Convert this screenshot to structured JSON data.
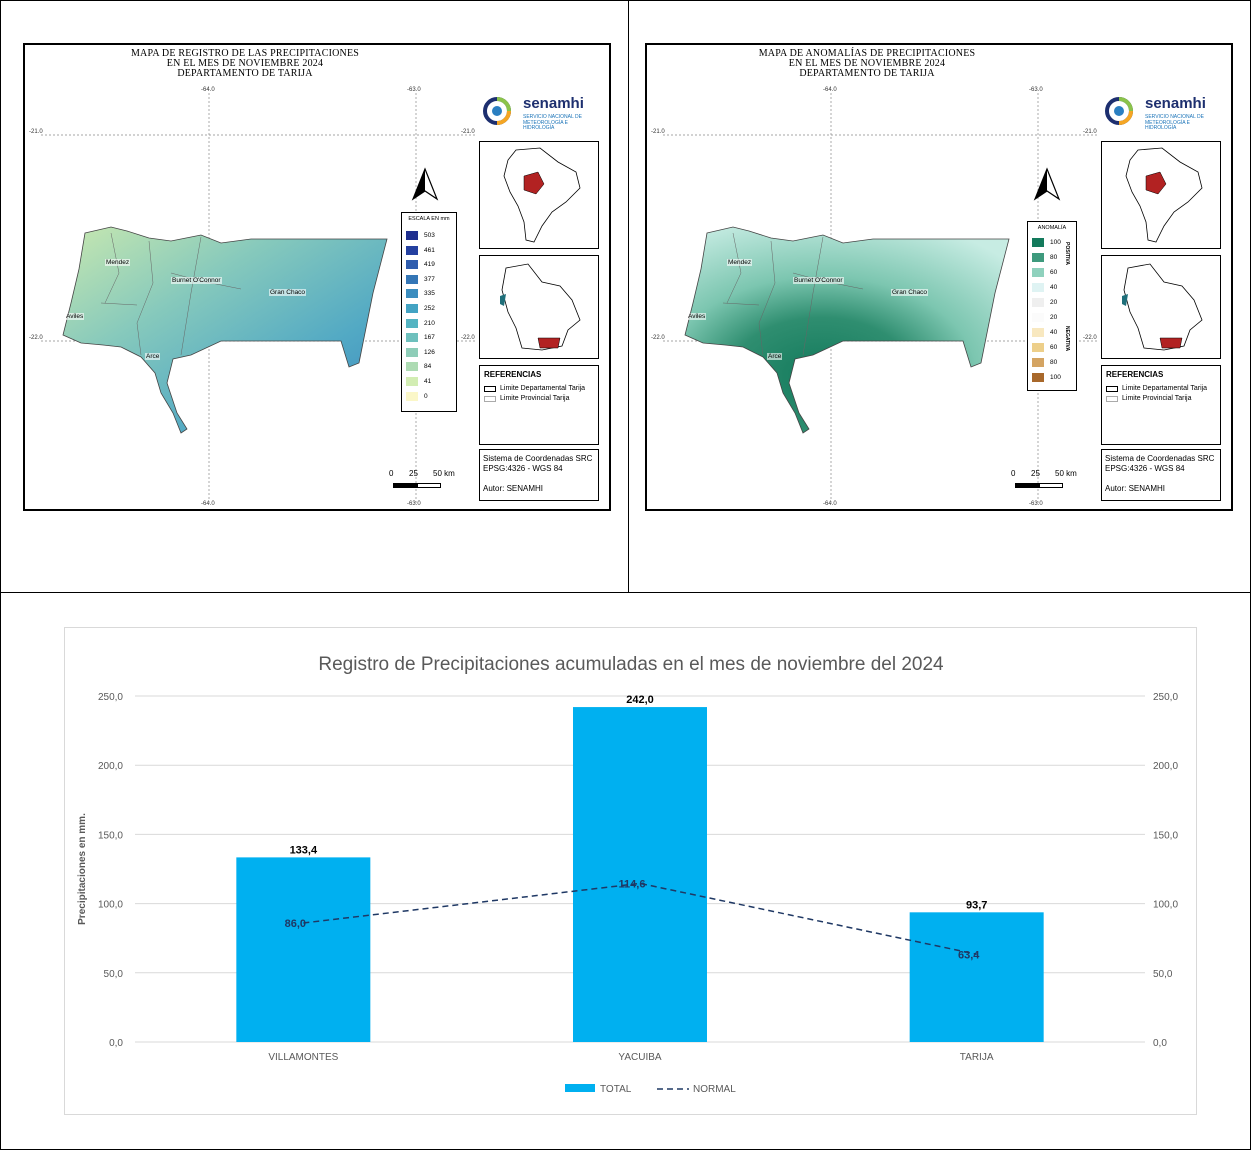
{
  "map_precip": {
    "title_lines": [
      "MAPA DE REGISTRO DE LAS PRECIPITACIONES",
      "EN EL MES DE NOVIEMBRE  2024",
      "DEPARTAMENTO DE TARIJA"
    ],
    "grid_top": [
      "-64.0",
      "-63.0"
    ],
    "grid_bottom": [
      "-64.0",
      "-63.0"
    ],
    "grid_left": [
      "-21.0",
      "-22.0"
    ],
    "grid_right": [
      "-21.0",
      "-22.0"
    ],
    "places": [
      "Mendez",
      "Burnet O'Connor",
      "Gran Chaco",
      "Aviles",
      "Arce"
    ],
    "legend_title": "ESCALA EN mm",
    "legend": [
      {
        "label": "503",
        "color": "#1f2f8f"
      },
      {
        "label": "461",
        "color": "#2440a0"
      },
      {
        "label": "419",
        "color": "#2f5dae"
      },
      {
        "label": "377",
        "color": "#3476b6"
      },
      {
        "label": "335",
        "color": "#3b8dbf"
      },
      {
        "label": "252",
        "color": "#43a3c3"
      },
      {
        "label": "210",
        "color": "#54b4c2"
      },
      {
        "label": "167",
        "color": "#6ec0bd"
      },
      {
        "label": "126",
        "color": "#8ecdb8"
      },
      {
        "label": "84",
        "color": "#addbb3"
      },
      {
        "label": "41",
        "color": "#d2edb3"
      },
      {
        "label": "0",
        "color": "#fbf7c8"
      }
    ]
  },
  "map_anomaly": {
    "title_lines": [
      "MAPA DE ANOMALÍAS DE PRECIPITACIONES",
      "EN EL MES DE NOVIEMBRE 2024",
      "DEPARTAMENTO DE TARIJA"
    ],
    "grid_top": [
      "-64.0",
      "-63.0"
    ],
    "grid_bottom": [
      "-64.0",
      "-63.0"
    ],
    "grid_left": [
      "-21.0",
      "-22.0"
    ],
    "grid_right": [
      "-21.0",
      "-22.0"
    ],
    "places": [
      "Mendez",
      "Burnet O'Connor",
      "Gran Chaco",
      "Aviles",
      "Arce"
    ],
    "legend_title": "ANOMALÍA",
    "positive_label": "POSITIVA",
    "negative_label": "NEGATIVA",
    "legend": [
      {
        "label": "100",
        "color": "#137a5c"
      },
      {
        "label": "80",
        "color": "#3e9a7d"
      },
      {
        "label": "60",
        "color": "#8fd1bd"
      },
      {
        "label": "40",
        "color": "#dff3f3"
      },
      {
        "label": "20",
        "color": "#efefef"
      },
      {
        "label": "20",
        "color": "#fbfbfb"
      },
      {
        "label": "40",
        "color": "#f8e8c0"
      },
      {
        "label": "60",
        "color": "#edcf8a"
      },
      {
        "label": "80",
        "color": "#d4a462"
      },
      {
        "label": "100",
        "color": "#a8682b"
      }
    ]
  },
  "shared": {
    "brand": "senamhi",
    "brand_sub_1": "SERVICIO NACIONAL DE",
    "brand_sub_2": "METEOROLOGÍA E HIDROLOGÍA",
    "ref_title": "REFERENCIAS",
    "ref_items": [
      "Limite Departamental Tarija",
      "Limite Provincial Tarija"
    ],
    "crs_line1": "Sistema de Coordenadas SRC",
    "crs_line2": "EPSG:4326 - WGS 84",
    "author": "Autor: SENAMHI",
    "scale_labels": [
      "0",
      "25",
      "50 km"
    ],
    "colors": {
      "bolivia_highlight": "#b22222"
    }
  },
  "chart": {
    "title": "Registro de Precipitaciones acumuladas en el mes de  noviembre del 2024",
    "legend_total": "TOTAL",
    "legend_normal": "NORMAL",
    "bar_color": "#00b0f0",
    "line_color": "#1f3864"
  },
  "chart_data": {
    "type": "bar",
    "categories": [
      "VILLAMONTES",
      "YACUIBA",
      "TARIJA"
    ],
    "series": [
      {
        "name": "TOTAL",
        "type": "bar",
        "values": [
          133.4,
          242.0,
          93.7
        ],
        "labels": [
          "133,4",
          "242,0",
          "93,7"
        ]
      },
      {
        "name": "NORMAL",
        "type": "line",
        "style": "dashed",
        "values": [
          86.0,
          114.6,
          63.4
        ],
        "labels": [
          "86,0",
          "114,6",
          "63,4"
        ]
      }
    ],
    "ylabel": "Precipitaciones en mm.",
    "ylim": [
      0,
      250
    ],
    "yticks": [
      "0,0",
      "50,0",
      "100,0",
      "150,0",
      "200,0",
      "250,0"
    ],
    "yticks_right": [
      "0,0",
      "50,0",
      "100,0",
      "150,0",
      "200,0",
      "250,0"
    ],
    "grid": true,
    "legend_position": "bottom"
  }
}
